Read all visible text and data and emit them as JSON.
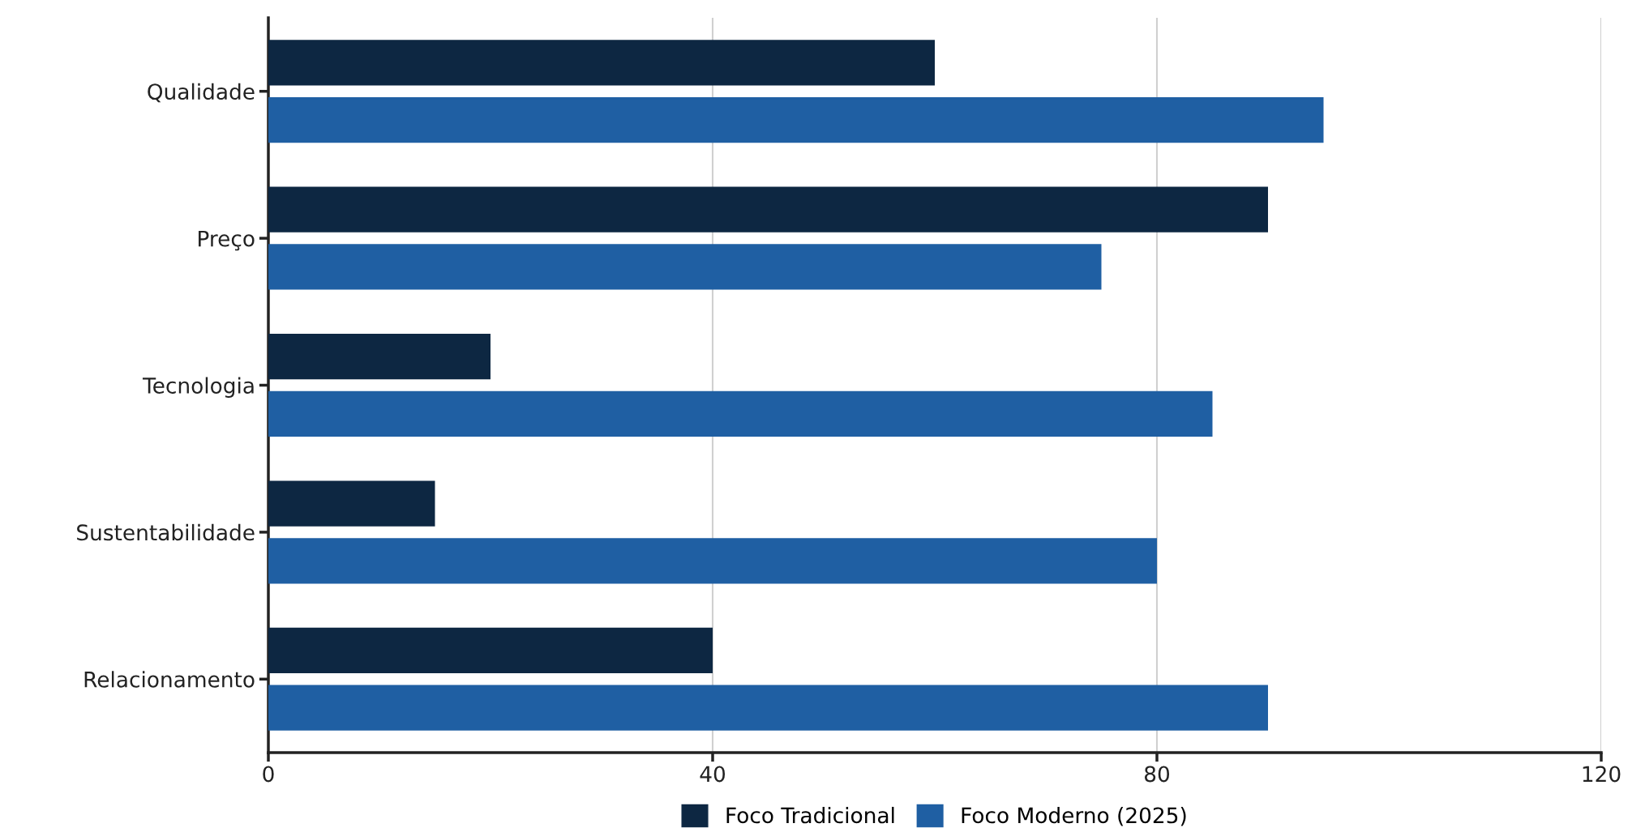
{
  "chart_data": {
    "type": "bar",
    "orientation": "horizontal",
    "categories": [
      "Qualidade",
      "Preço",
      "Tecnologia",
      "Sustentabilidade",
      "Relacionamento"
    ],
    "series": [
      {
        "name": "Foco Tradicional",
        "color": "#0d2742",
        "values": [
          60,
          90,
          20,
          15,
          40
        ]
      },
      {
        "name": "Foco Moderno (2025)",
        "color": "#1f5fa3",
        "values": [
          95,
          75,
          85,
          80,
          90
        ]
      }
    ],
    "xlim": [
      0,
      120
    ],
    "xticks": [
      0,
      40,
      80,
      120
    ],
    "grid": "x",
    "legend": "bottom"
  }
}
